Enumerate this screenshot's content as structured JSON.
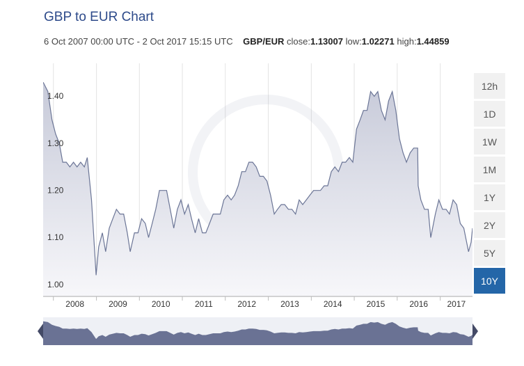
{
  "page": {
    "title": "GBP to EUR Chart",
    "subtitle": {
      "period": "6 Oct 2007 00:00 UTC - 2 Oct 2017 15:15 UTC",
      "pair": "GBP/EUR",
      "close_label": "close:",
      "close": "1.13007",
      "low_label": "low:",
      "low": "1.02271",
      "high_label": "high:",
      "high": "1.44859"
    },
    "range_buttons": [
      {
        "label": "12h",
        "active": false
      },
      {
        "label": "1D",
        "active": false
      },
      {
        "label": "1W",
        "active": false
      },
      {
        "label": "1M",
        "active": false
      },
      {
        "label": "1Y",
        "active": false
      },
      {
        "label": "2Y",
        "active": false
      },
      {
        "label": "5Y",
        "active": false
      },
      {
        "label": "10Y",
        "active": true
      }
    ],
    "colors": {
      "line": "#6b7596",
      "fill_top": "#c7cad9",
      "fill_bottom": "#f7f7fa",
      "navigator_fill": "#6a7294",
      "active_button": "#2466a8"
    }
  },
  "chart_data": {
    "type": "area",
    "title": "GBP to EUR Chart",
    "series": [
      {
        "name": "GBP/EUR",
        "x": [
          "2007-10-06",
          "2007-11-15",
          "2007-12-20",
          "2008-01-20",
          "2008-02-20",
          "2008-03-20",
          "2008-04-20",
          "2008-05-20",
          "2008-06-20",
          "2008-07-20",
          "2008-08-20",
          "2008-09-20",
          "2008-10-15",
          "2008-11-20",
          "2008-12-29",
          "2009-01-20",
          "2009-02-20",
          "2009-03-20",
          "2009-04-20",
          "2009-05-20",
          "2009-06-20",
          "2009-07-20",
          "2009-08-20",
          "2009-09-20",
          "2009-10-15",
          "2009-11-20",
          "2009-12-20",
          "2010-01-20",
          "2010-02-20",
          "2010-03-20",
          "2010-04-20",
          "2010-05-20",
          "2010-06-20",
          "2010-07-20",
          "2010-08-20",
          "2010-09-20",
          "2010-10-20",
          "2010-11-20",
          "2010-12-20",
          "2011-01-20",
          "2011-02-20",
          "2011-03-20",
          "2011-04-20",
          "2011-05-20",
          "2011-06-20",
          "2011-07-20",
          "2011-08-20",
          "2011-09-20",
          "2011-10-20",
          "2011-11-20",
          "2011-12-20",
          "2012-01-20",
          "2012-02-20",
          "2012-03-20",
          "2012-04-20",
          "2012-05-20",
          "2012-06-20",
          "2012-07-20",
          "2012-08-20",
          "2012-09-20",
          "2012-10-20",
          "2012-11-20",
          "2012-12-20",
          "2013-01-20",
          "2013-02-20",
          "2013-03-20",
          "2013-04-20",
          "2013-05-20",
          "2013-06-20",
          "2013-07-20",
          "2013-08-20",
          "2013-09-20",
          "2013-10-20",
          "2013-11-20",
          "2013-12-20",
          "2014-01-20",
          "2014-02-20",
          "2014-03-20",
          "2014-04-20",
          "2014-05-20",
          "2014-06-20",
          "2014-07-20",
          "2014-08-20",
          "2014-09-20",
          "2014-10-20",
          "2014-11-20",
          "2014-12-20",
          "2015-01-20",
          "2015-02-20",
          "2015-03-20",
          "2015-04-20",
          "2015-05-20",
          "2015-06-20",
          "2015-07-20",
          "2015-08-20",
          "2015-09-20",
          "2015-10-20",
          "2015-11-20",
          "2015-12-20",
          "2016-01-20",
          "2016-02-20",
          "2016-03-20",
          "2016-04-20",
          "2016-05-20",
          "2016-06-23",
          "2016-06-27",
          "2016-07-20",
          "2016-08-20",
          "2016-09-20",
          "2016-10-12",
          "2016-11-20",
          "2016-12-20",
          "2017-01-20",
          "2017-02-20",
          "2017-03-20",
          "2017-04-20",
          "2017-05-20",
          "2017-06-20",
          "2017-07-20",
          "2017-08-29",
          "2017-09-20",
          "2017-10-02"
        ],
        "values": [
          1.44,
          1.42,
          1.36,
          1.33,
          1.31,
          1.27,
          1.27,
          1.26,
          1.27,
          1.26,
          1.27,
          1.26,
          1.28,
          1.19,
          1.03,
          1.09,
          1.12,
          1.08,
          1.13,
          1.15,
          1.17,
          1.16,
          1.16,
          1.12,
          1.08,
          1.12,
          1.12,
          1.15,
          1.14,
          1.11,
          1.14,
          1.17,
          1.21,
          1.21,
          1.21,
          1.17,
          1.13,
          1.17,
          1.19,
          1.16,
          1.18,
          1.15,
          1.12,
          1.15,
          1.12,
          1.12,
          1.14,
          1.16,
          1.16,
          1.16,
          1.19,
          1.2,
          1.19,
          1.2,
          1.22,
          1.25,
          1.25,
          1.27,
          1.27,
          1.26,
          1.24,
          1.24,
          1.23,
          1.2,
          1.16,
          1.17,
          1.18,
          1.18,
          1.17,
          1.17,
          1.16,
          1.19,
          1.18,
          1.19,
          1.2,
          1.21,
          1.21,
          1.21,
          1.22,
          1.22,
          1.25,
          1.26,
          1.25,
          1.27,
          1.27,
          1.28,
          1.27,
          1.34,
          1.36,
          1.38,
          1.38,
          1.42,
          1.41,
          1.42,
          1.38,
          1.36,
          1.4,
          1.42,
          1.38,
          1.32,
          1.29,
          1.27,
          1.29,
          1.3,
          1.3,
          1.22,
          1.19,
          1.17,
          1.17,
          1.11,
          1.16,
          1.19,
          1.17,
          1.17,
          1.16,
          1.19,
          1.18,
          1.14,
          1.13,
          1.08,
          1.1,
          1.13
        ]
      }
    ],
    "x_tick_labels": [
      "2008",
      "2009",
      "2010",
      "2011",
      "2012",
      "2013",
      "2014",
      "2015",
      "2016",
      "2017"
    ],
    "y_tick_labels": [
      "1.00",
      "1.10",
      "1.20",
      "1.30",
      "1.40"
    ],
    "xlim": [
      "2007-10-06",
      "2017-10-02"
    ],
    "ylim": [
      0.985,
      1.48
    ],
    "grid": true,
    "navigator": true
  }
}
